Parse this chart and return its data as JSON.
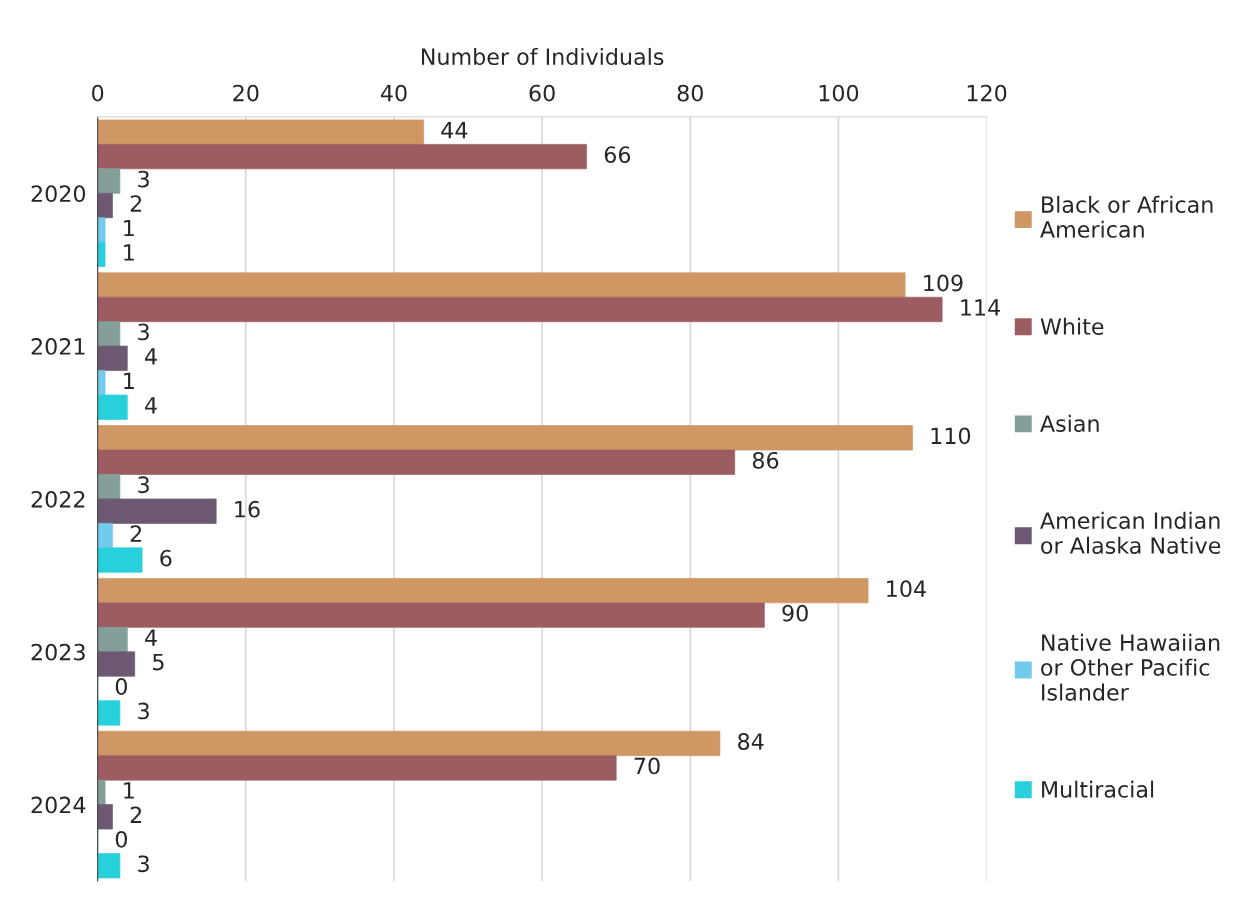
{
  "chart_data": {
    "type": "bar",
    "orientation": "horizontal",
    "xlabel": "Number of Individuals",
    "categories": [
      "2020",
      "2021",
      "2022",
      "2023",
      "2024"
    ],
    "series": [
      {
        "name": "Black or African American",
        "color": "#cf9764",
        "values": [
          44,
          109,
          110,
          104,
          84
        ]
      },
      {
        "name": "White",
        "color": "#9c5d62",
        "values": [
          66,
          114,
          86,
          90,
          70
        ]
      },
      {
        "name": "Asian",
        "color": "#849e9a",
        "values": [
          3,
          3,
          3,
          4,
          1
        ]
      },
      {
        "name": "American Indian or Alaska Native",
        "color": "#6d5a72",
        "values": [
          2,
          4,
          16,
          5,
          2
        ]
      },
      {
        "name": "Native Hawaiian or Other Pacific Islander",
        "color": "#72cbeb",
        "values": [
          1,
          1,
          2,
          0,
          0
        ]
      },
      {
        "name": "Multiracial",
        "color": "#28d0db",
        "values": [
          1,
          4,
          6,
          3,
          3
        ]
      }
    ],
    "xlim": [
      0,
      120
    ],
    "xticks": [
      0,
      20,
      40,
      60,
      80,
      100,
      120
    ],
    "grid": "x",
    "legend": "right",
    "data_labels": true
  }
}
